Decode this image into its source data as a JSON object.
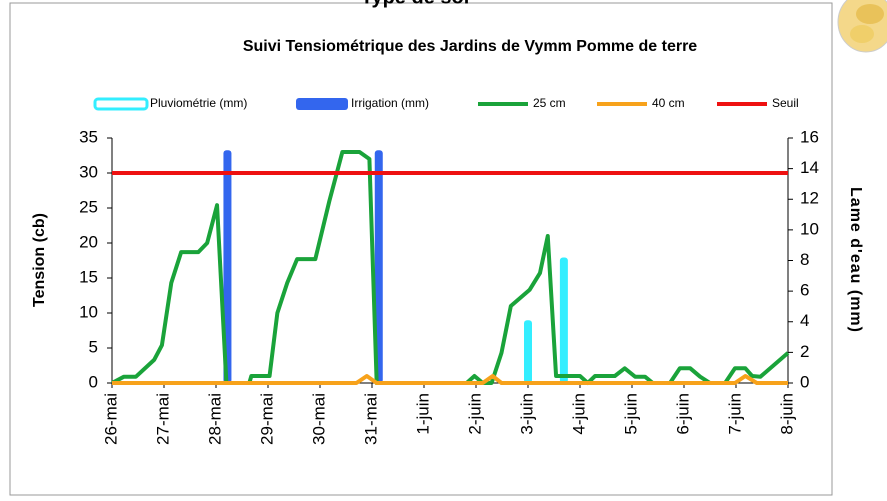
{
  "header": {
    "title": "Type de sol"
  },
  "chart_data": {
    "type": "combo",
    "title": "Suivi Tensiométrique des Jardins de Vymm Pomme de terre",
    "ylabel": "Tension (cb)",
    "y2label": "Lame d'eau (mm)",
    "xlim": [
      0,
      13
    ],
    "xticks": [
      {
        "value": 0,
        "label": "26-mai"
      },
      {
        "value": 1,
        "label": "27-mai"
      },
      {
        "value": 2,
        "label": "28-mai"
      },
      {
        "value": 3,
        "label": "29-mai"
      },
      {
        "value": 4,
        "label": "30-mai"
      },
      {
        "value": 5,
        "label": "31-mai"
      },
      {
        "value": 6,
        "label": "1-juin"
      },
      {
        "value": 7,
        "label": "2-juin"
      },
      {
        "value": 8,
        "label": "3-juin"
      },
      {
        "value": 9,
        "label": "4-juin"
      },
      {
        "value": 10,
        "label": "5-juin"
      },
      {
        "value": 11,
        "label": "6-juin"
      },
      {
        "value": 12,
        "label": "7-juin"
      },
      {
        "value": 13,
        "label": "8-juin"
      }
    ],
    "ylim": [
      0,
      35
    ],
    "yticks": [
      0,
      5,
      10,
      15,
      20,
      25,
      30,
      35
    ],
    "y2lim": [
      0,
      16
    ],
    "y2ticks": [
      0,
      2,
      4,
      6,
      8,
      10,
      12,
      14,
      16
    ],
    "series": [
      {
        "name": "Pluviométrie (mm)",
        "type": "bar",
        "axis": "y2",
        "color": "#33eeff",
        "x": [
          8.0,
          8.69
        ],
        "values": [
          4.1,
          8.2
        ]
      },
      {
        "name": "Irrigation (mm)",
        "type": "bar",
        "axis": "y2",
        "color": "#3366ee",
        "x": [
          2.22,
          5.13
        ],
        "values": [
          15.2,
          15.2
        ]
      },
      {
        "name": "25 cm",
        "type": "line",
        "color": "#1aa33a",
        "x": [
          0,
          0.23,
          0.46,
          0.81,
          0.96,
          1.14,
          1.33,
          1.66,
          1.83,
          2.02,
          2.2,
          2.64,
          2.68,
          3.03,
          3.18,
          3.37,
          3.56,
          3.91,
          4.18,
          4.43,
          4.76,
          4.95,
          5.09,
          6.82,
          6.97,
          7.13,
          7.3,
          7.49,
          7.67,
          8.03,
          8.23,
          8.38,
          8.54,
          9.0,
          9.15,
          9.29,
          9.67,
          9.86,
          10.06,
          10.25,
          10.4,
          10.73,
          10.92,
          11.12,
          11.31,
          11.5,
          11.79,
          11.98,
          12.18,
          12.31,
          12.47,
          13
        ],
        "values": [
          0,
          0.9,
          0.9,
          3.3,
          5.4,
          14.3,
          18.7,
          18.7,
          20,
          25.4,
          0,
          0,
          1,
          1,
          10,
          14.3,
          17.7,
          17.7,
          26,
          33,
          33,
          32,
          0,
          0,
          1,
          0,
          0,
          4.3,
          11,
          13.3,
          15.7,
          21,
          1,
          1,
          0,
          1,
          1,
          2.1,
          0.9,
          0.9,
          0,
          0,
          2.1,
          2.1,
          0.9,
          0,
          0,
          2.1,
          2.1,
          1,
          0.9,
          4.3
        ]
      },
      {
        "name": "40 cm",
        "type": "line",
        "color": "#f7a21b",
        "x": [
          0,
          4.7,
          4.9,
          5.09,
          7.13,
          7.32,
          7.49,
          11.98,
          12.18,
          12.4,
          13
        ],
        "values": [
          0,
          0,
          1,
          0,
          0,
          1,
          0,
          0,
          1,
          0,
          0
        ]
      },
      {
        "name": "Seuil",
        "type": "line",
        "color": "#ee1111",
        "x": [
          0,
          13
        ],
        "values": [
          30,
          30
        ]
      }
    ]
  }
}
